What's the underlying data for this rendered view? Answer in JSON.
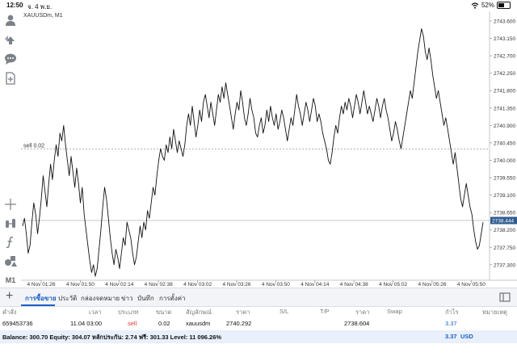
{
  "status": {
    "time": "12:50",
    "date": "จ. 4 พ.ย.",
    "battery": "52%",
    "battery_level": 0.52
  },
  "toolbar": {
    "items": [
      "person-icon",
      "trade-arrows-icon",
      "chat-icon",
      "new-document-icon",
      "crosshair-icon",
      "indicators-icon",
      "function-icon",
      "objects-icon"
    ],
    "timeframe": "M1"
  },
  "chart_data": {
    "type": "line",
    "title": "XAUUSDm, M1",
    "x_ticks": [
      "4 Nov 01:26",
      "4 Nov 01:50",
      "4 Nov 02:14",
      "4 Nov 02:38",
      "4 Nov 03:02",
      "4 Nov 03:26",
      "4 Nov 03:50",
      "4 Nov 04:14",
      "4 Nov 04:38",
      "4 Nov 05:02",
      "4 Nov 05:26",
      "4 Nov 05:50"
    ],
    "y_ticks": [
      "2743.600",
      "2743.150",
      "2742.700",
      "2742.250",
      "2741.800",
      "2741.350",
      "2740.900",
      "2740.450",
      "2740.000",
      "2739.550",
      "2739.100",
      "2738.650",
      "2738.200",
      "2737.750",
      "2737.300"
    ],
    "ylim": [
      2736.9,
      2743.85
    ],
    "current_price": "2738.444",
    "current_value": 2738.444,
    "order_line": {
      "label": "sell 0.02",
      "value": 2740.292
    },
    "series": [
      {
        "values": [
          2738.3,
          2738.5,
          2738.1,
          2737.6,
          2737.8,
          2738.4,
          2738.9,
          2738.6,
          2738.1,
          2738.5,
          2739.0,
          2739.6,
          2739.2,
          2738.8,
          2739.4,
          2739.9,
          2739.5,
          2740.0,
          2740.4,
          2740.1,
          2740.7,
          2740.5,
          2740.9,
          2740.4,
          2740.0,
          2739.6,
          2740.1,
          2739.7,
          2739.3,
          2739.8,
          2739.4,
          2738.9,
          2739.3,
          2738.6,
          2738.2,
          2737.8,
          2737.4,
          2737.1,
          2737.3,
          2737.0,
          2737.2,
          2737.7,
          2738.2,
          2738.8,
          2739.3,
          2739.0,
          2738.5,
          2738.0,
          2737.6,
          2737.3,
          2737.7,
          2737.5,
          2737.2,
          2737.6,
          2738.0,
          2737.8,
          2738.4,
          2738.2,
          2738.0,
          2737.6,
          2737.3,
          2737.5,
          2737.9,
          2738.3,
          2738.0,
          2738.4,
          2738.2,
          2738.7,
          2738.5,
          2738.9,
          2739.3,
          2739.1,
          2739.6,
          2740.0,
          2740.3,
          2740.1,
          2740.0,
          2740.4,
          2740.2,
          2740.6,
          2740.3,
          2740.8,
          2740.5,
          2740.2,
          2740.5,
          2740.3,
          2740.1,
          2740.4,
          2740.9,
          2741.2,
          2740.9,
          2741.4,
          2741.0,
          2740.6,
          2740.9,
          2741.3,
          2741.0,
          2741.5,
          2741.7,
          2741.4,
          2741.1,
          2741.5,
          2741.2,
          2740.9,
          2741.3,
          2741.7,
          2741.5,
          2741.9,
          2741.6,
          2742.0,
          2741.7,
          2741.4,
          2741.1,
          2740.8,
          2741.2,
          2741.5,
          2741.3,
          2741.8,
          2741.5,
          2741.1,
          2740.9,
          2741.2,
          2741.6,
          2741.3,
          2741.1,
          2740.7,
          2740.6,
          2740.9,
          2741.1,
          2740.7,
          2740.9,
          2741.3,
          2741.0,
          2741.4,
          2741.1,
          2740.9,
          2741.2,
          2740.8,
          2741.0,
          2741.3,
          2741.1,
          2740.8,
          2740.5,
          2740.8,
          2741.1,
          2740.9,
          2741.3,
          2741.7,
          2741.4,
          2741.2,
          2740.9,
          2741.2,
          2741.5,
          2741.3,
          2741.0,
          2741.3,
          2741.6,
          2741.4,
          2741.0,
          2741.2,
          2741.0,
          2740.7,
          2740.5,
          2740.3,
          2740.0,
          2739.9,
          2740.2,
          2740.6,
          2740.9,
          2740.7,
          2741.1,
          2741.4,
          2741.2,
          2741.5,
          2741.3,
          2741.6,
          2741.4,
          2741.1,
          2741.4,
          2741.7,
          2741.5,
          2741.2,
          2741.5,
          2741.8,
          2741.5,
          2741.2,
          2741.4,
          2741.2,
          2741.0,
          2741.3,
          2741.6,
          2741.4,
          2741.1,
          2741.4,
          2741.6,
          2741.3,
          2741.1,
          2740.8,
          2740.5,
          2740.7,
          2741.0,
          2740.8,
          2740.5,
          2740.3,
          2740.6,
          2740.9,
          2741.2,
          2741.5,
          2741.8,
          2741.6,
          2742.0,
          2742.4,
          2742.8,
          2743.1,
          2743.4,
          2743.2,
          2742.8,
          2742.6,
          2742.9,
          2742.6,
          2742.2,
          2741.9,
          2741.6,
          2741.8,
          2741.5,
          2741.2,
          2740.9,
          2741.1,
          2740.8,
          2740.5,
          2740.2,
          2739.9,
          2740.2,
          2739.8,
          2739.4,
          2739.0,
          2738.8,
          2739.1,
          2739.4,
          2739.1,
          2738.8,
          2738.6,
          2738.2,
          2737.9,
          2737.7,
          2737.8,
          2738.1,
          2738.4
        ]
      }
    ]
  },
  "tabs": [
    {
      "label": "การซื้อขาย",
      "active": true
    },
    {
      "label": "ประวัติ",
      "active": false
    },
    {
      "label": "กล่องจดหมาย",
      "active": false
    },
    {
      "label": "ข่าว",
      "active": false
    },
    {
      "label": "บันทึก",
      "active": false
    },
    {
      "label": "การตั้งค่า",
      "active": false
    }
  ],
  "table": {
    "headers": [
      "คำสั่ง",
      "เวลา",
      "ประเภท",
      "ขนาด",
      "สัญลักษณ์",
      "ราคา",
      "S/L",
      "T/P",
      "ราคา",
      "Swap",
      "กำไร",
      "หมายเหตุ"
    ],
    "rows": [
      {
        "order": "659453736",
        "time": "11.04 03:00",
        "type": "sell",
        "size": "0.02",
        "symbol": "xauusdm",
        "open_price": "2740.292",
        "price": "2738.604",
        "profit": "3.37"
      }
    ]
  },
  "balance": {
    "summary": "Balance: 300.70 Equity: 304.07 หลักประกัน: 2.74 ฟรี: 301.33 Level: 11 096.26%",
    "profit": "3.37",
    "currency": "USD"
  }
}
